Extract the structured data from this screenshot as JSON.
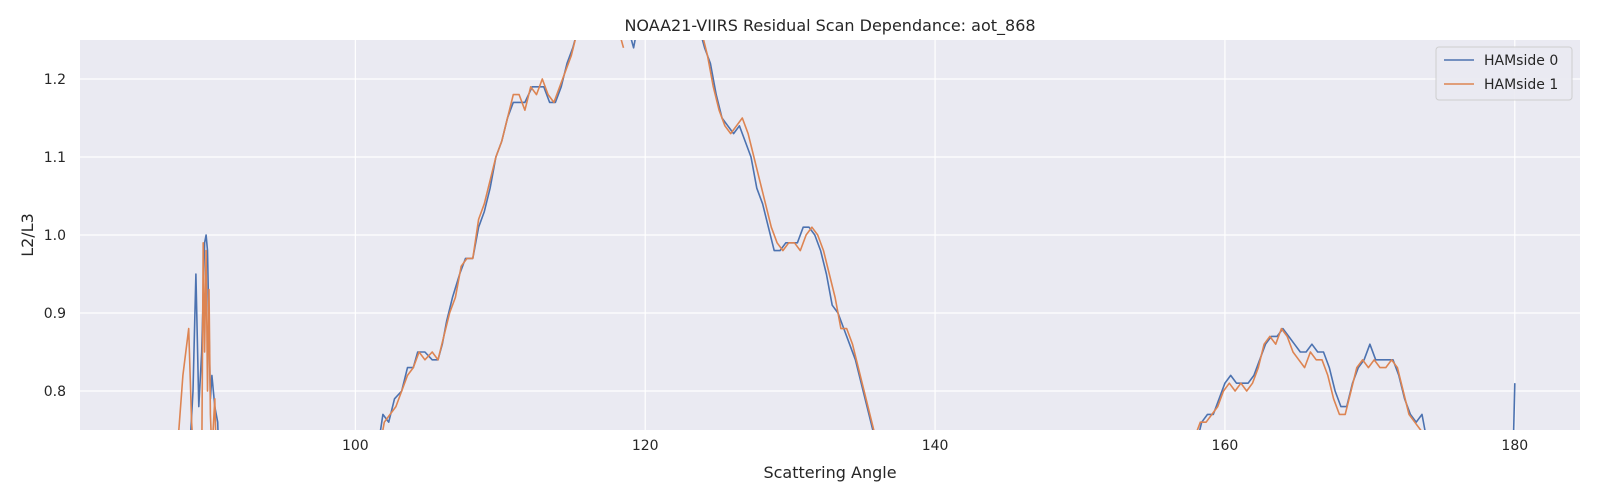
{
  "chart_data": {
    "type": "line",
    "title": "NOAA21-VIIRS Residual Scan Dependance: aot_868",
    "xlabel": "Scattering Angle",
    "ylabel": "L2/L3",
    "xlim": [
      81,
      184.5
    ],
    "ylim": [
      0.75,
      1.25
    ],
    "xticks": [
      100,
      120,
      140,
      160,
      180
    ],
    "yticks": [
      0.8,
      0.9,
      1.0,
      1.1,
      1.2
    ],
    "xtick_labels": [
      "100",
      "120",
      "140",
      "160",
      "180"
    ],
    "ytick_labels": [
      "0.8",
      "0.9",
      "1.0",
      "1.1",
      "1.2"
    ],
    "grid": true,
    "legend_position": "top-right",
    "colors": {
      "background": "#eaeaf2",
      "grid": "#ffffff"
    },
    "series": [
      {
        "name": "HAMside 0",
        "color": "#4c72b0",
        "segments": [
          [
            [
              88.5,
              0.7
            ],
            [
              88.8,
              0.8
            ],
            [
              89.0,
              0.95
            ],
            [
              89.2,
              0.78
            ],
            [
              89.4,
              0.85
            ],
            [
              89.6,
              0.99
            ],
            [
              89.7,
              1.0
            ],
            [
              89.8,
              0.98
            ],
            [
              89.9,
              0.88
            ],
            [
              90.0,
              0.79
            ],
            [
              90.1,
              0.82
            ],
            [
              90.3,
              0.78
            ],
            [
              90.5,
              0.76
            ],
            [
              90.6,
              0.7
            ]
          ],
          [
            [
              101.5,
              0.72
            ],
            [
              101.9,
              0.77
            ],
            [
              102.3,
              0.76
            ],
            [
              102.7,
              0.79
            ],
            [
              103.2,
              0.8
            ],
            [
              103.6,
              0.83
            ],
            [
              104.0,
              0.83
            ],
            [
              104.3,
              0.85
            ],
            [
              104.8,
              0.85
            ],
            [
              105.3,
              0.84
            ],
            [
              105.7,
              0.84
            ],
            [
              106.0,
              0.86
            ],
            [
              106.3,
              0.89
            ],
            [
              106.7,
              0.92
            ],
            [
              107.2,
              0.95
            ],
            [
              107.6,
              0.97
            ],
            [
              108.1,
              0.97
            ],
            [
              108.5,
              1.01
            ],
            [
              108.9,
              1.03
            ],
            [
              109.3,
              1.06
            ],
            [
              109.7,
              1.1
            ],
            [
              110.1,
              1.12
            ],
            [
              110.5,
              1.15
            ],
            [
              110.9,
              1.17
            ],
            [
              111.3,
              1.17
            ],
            [
              111.7,
              1.17
            ],
            [
              112.2,
              1.19
            ],
            [
              112.6,
              1.19
            ],
            [
              113.0,
              1.19
            ],
            [
              113.4,
              1.17
            ],
            [
              113.8,
              1.17
            ],
            [
              114.2,
              1.19
            ],
            [
              114.6,
              1.22
            ],
            [
              115.0,
              1.24
            ],
            [
              115.3,
              1.26
            ]
          ],
          [
            [
              118.9,
              1.26
            ],
            [
              119.2,
              1.24
            ],
            [
              119.4,
              1.26
            ]
          ],
          [
            [
              123.8,
              1.26
            ],
            [
              124.1,
              1.24
            ],
            [
              124.5,
              1.22
            ],
            [
              124.9,
              1.18
            ],
            [
              125.3,
              1.15
            ],
            [
              125.7,
              1.14
            ],
            [
              126.1,
              1.13
            ],
            [
              126.5,
              1.14
            ],
            [
              126.9,
              1.12
            ],
            [
              127.3,
              1.1
            ],
            [
              127.7,
              1.06
            ],
            [
              128.1,
              1.04
            ],
            [
              128.5,
              1.01
            ],
            [
              128.9,
              0.98
            ],
            [
              129.3,
              0.98
            ],
            [
              129.7,
              0.99
            ],
            [
              130.1,
              0.99
            ],
            [
              130.5,
              0.99
            ],
            [
              130.9,
              1.01
            ],
            [
              131.3,
              1.01
            ],
            [
              131.7,
              1.0
            ],
            [
              132.1,
              0.98
            ],
            [
              132.5,
              0.95
            ],
            [
              132.9,
              0.91
            ],
            [
              133.3,
              0.9
            ],
            [
              133.7,
              0.88
            ],
            [
              134.1,
              0.86
            ],
            [
              134.5,
              0.84
            ],
            [
              134.9,
              0.81
            ],
            [
              135.3,
              0.78
            ],
            [
              135.7,
              0.75
            ],
            [
              136.0,
              0.73
            ]
          ],
          [
            [
              158.0,
              0.73
            ],
            [
              158.4,
              0.76
            ],
            [
              158.8,
              0.77
            ],
            [
              159.2,
              0.77
            ],
            [
              159.6,
              0.79
            ],
            [
              160.0,
              0.81
            ],
            [
              160.4,
              0.82
            ],
            [
              160.8,
              0.81
            ],
            [
              161.2,
              0.81
            ],
            [
              161.6,
              0.81
            ],
            [
              162.0,
              0.82
            ],
            [
              162.4,
              0.84
            ],
            [
              162.8,
              0.86
            ],
            [
              163.2,
              0.87
            ],
            [
              163.6,
              0.87
            ],
            [
              164.0,
              0.88
            ],
            [
              164.4,
              0.87
            ],
            [
              164.8,
              0.86
            ],
            [
              165.2,
              0.85
            ],
            [
              165.6,
              0.85
            ],
            [
              166.0,
              0.86
            ],
            [
              166.4,
              0.85
            ],
            [
              166.8,
              0.85
            ],
            [
              167.2,
              0.83
            ],
            [
              167.6,
              0.8
            ],
            [
              168.0,
              0.78
            ],
            [
              168.4,
              0.78
            ],
            [
              168.8,
              0.81
            ],
            [
              169.2,
              0.83
            ],
            [
              169.6,
              0.84
            ],
            [
              170.0,
              0.86
            ],
            [
              170.4,
              0.84
            ],
            [
              170.8,
              0.84
            ],
            [
              171.2,
              0.84
            ],
            [
              171.6,
              0.84
            ],
            [
              172.0,
              0.82
            ],
            [
              172.4,
              0.79
            ],
            [
              172.8,
              0.77
            ],
            [
              173.2,
              0.76
            ],
            [
              173.6,
              0.77
            ],
            [
              174.0,
              0.73
            ]
          ],
          [
            [
              179.9,
              0.73
            ],
            [
              180.0,
              0.81
            ]
          ]
        ]
      },
      {
        "name": "HAMside 1",
        "color": "#dd8452",
        "segments": [
          [
            [
              87.7,
              0.72
            ],
            [
              88.1,
              0.82
            ],
            [
              88.5,
              0.88
            ],
            [
              88.7,
              0.76
            ],
            [
              88.9,
              0.7
            ],
            [
              89.4,
              0.7
            ],
            [
              89.5,
              0.99
            ],
            [
              89.6,
              0.85
            ],
            [
              89.7,
              0.98
            ],
            [
              89.8,
              0.8
            ],
            [
              89.9,
              0.93
            ],
            [
              90.0,
              0.77
            ],
            [
              90.1,
              0.72
            ],
            [
              90.3,
              0.79
            ],
            [
              90.4,
              0.72
            ],
            [
              90.6,
              0.7
            ]
          ],
          [
            [
              101.6,
              0.72
            ],
            [
              102.0,
              0.76
            ],
            [
              102.4,
              0.77
            ],
            [
              102.8,
              0.78
            ],
            [
              103.2,
              0.8
            ],
            [
              103.6,
              0.82
            ],
            [
              104.0,
              0.83
            ],
            [
              104.4,
              0.85
            ],
            [
              104.8,
              0.84
            ],
            [
              105.3,
              0.85
            ],
            [
              105.7,
              0.84
            ],
            [
              106.1,
              0.87
            ],
            [
              106.5,
              0.9
            ],
            [
              106.9,
              0.92
            ],
            [
              107.3,
              0.96
            ],
            [
              107.7,
              0.97
            ],
            [
              108.1,
              0.97
            ],
            [
              108.5,
              1.02
            ],
            [
              108.9,
              1.04
            ],
            [
              109.3,
              1.07
            ],
            [
              109.7,
              1.1
            ],
            [
              110.1,
              1.12
            ],
            [
              110.5,
              1.15
            ],
            [
              110.9,
              1.18
            ],
            [
              111.3,
              1.18
            ],
            [
              111.7,
              1.16
            ],
            [
              112.1,
              1.19
            ],
            [
              112.5,
              1.18
            ],
            [
              112.9,
              1.2
            ],
            [
              113.3,
              1.18
            ],
            [
              113.7,
              1.17
            ],
            [
              114.1,
              1.19
            ],
            [
              114.5,
              1.21
            ],
            [
              114.9,
              1.23
            ],
            [
              115.3,
              1.26
            ]
          ],
          [
            [
              118.2,
              1.26
            ],
            [
              118.5,
              1.24
            ]
          ],
          [
            [
              123.9,
              1.26
            ],
            [
              124.3,
              1.23
            ],
            [
              124.7,
              1.19
            ],
            [
              125.1,
              1.16
            ],
            [
              125.5,
              1.14
            ],
            [
              125.9,
              1.13
            ],
            [
              126.3,
              1.14
            ],
            [
              126.7,
              1.15
            ],
            [
              127.1,
              1.13
            ],
            [
              127.5,
              1.1
            ],
            [
              127.9,
              1.07
            ],
            [
              128.3,
              1.04
            ],
            [
              128.7,
              1.01
            ],
            [
              129.1,
              0.99
            ],
            [
              129.5,
              0.98
            ],
            [
              129.9,
              0.99
            ],
            [
              130.3,
              0.99
            ],
            [
              130.7,
              0.98
            ],
            [
              131.1,
              1.0
            ],
            [
              131.5,
              1.01
            ],
            [
              131.9,
              1.0
            ],
            [
              132.3,
              0.98
            ],
            [
              132.7,
              0.95
            ],
            [
              133.1,
              0.92
            ],
            [
              133.5,
              0.88
            ],
            [
              133.9,
              0.88
            ],
            [
              134.3,
              0.86
            ],
            [
              134.7,
              0.83
            ],
            [
              135.1,
              0.8
            ],
            [
              135.5,
              0.77
            ],
            [
              135.9,
              0.74
            ]
          ],
          [
            [
              157.9,
              0.74
            ],
            [
              158.3,
              0.76
            ],
            [
              158.7,
              0.76
            ],
            [
              159.1,
              0.77
            ],
            [
              159.5,
              0.78
            ],
            [
              159.9,
              0.8
            ],
            [
              160.3,
              0.81
            ],
            [
              160.7,
              0.8
            ],
            [
              161.1,
              0.81
            ],
            [
              161.5,
              0.8
            ],
            [
              161.9,
              0.81
            ],
            [
              162.3,
              0.83
            ],
            [
              162.7,
              0.86
            ],
            [
              163.1,
              0.87
            ],
            [
              163.5,
              0.86
            ],
            [
              163.9,
              0.88
            ],
            [
              164.3,
              0.87
            ],
            [
              164.7,
              0.85
            ],
            [
              165.1,
              0.84
            ],
            [
              165.5,
              0.83
            ],
            [
              165.9,
              0.85
            ],
            [
              166.3,
              0.84
            ],
            [
              166.7,
              0.84
            ],
            [
              167.1,
              0.82
            ],
            [
              167.5,
              0.79
            ],
            [
              167.9,
              0.77
            ],
            [
              168.3,
              0.77
            ],
            [
              168.7,
              0.8
            ],
            [
              169.1,
              0.83
            ],
            [
              169.5,
              0.84
            ],
            [
              169.9,
              0.83
            ],
            [
              170.3,
              0.84
            ],
            [
              170.7,
              0.83
            ],
            [
              171.1,
              0.83
            ],
            [
              171.5,
              0.84
            ],
            [
              171.9,
              0.83
            ],
            [
              172.3,
              0.8
            ],
            [
              172.7,
              0.77
            ],
            [
              173.1,
              0.76
            ],
            [
              173.5,
              0.75
            ],
            [
              173.9,
              0.74
            ]
          ]
        ]
      }
    ]
  }
}
